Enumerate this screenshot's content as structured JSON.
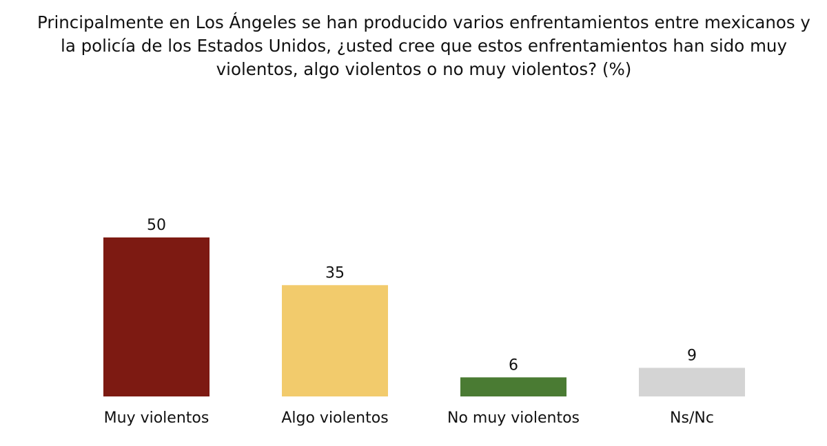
{
  "chart_data": {
    "type": "bar",
    "title": "Principalmente en Los Ángeles se han producido varios enfrentamientos entre mexicanos y la policía de los Estados Unidos, ¿usted cree que estos enfrentamientos han sido muy violentos, algo violentos o no muy violentos? (%)",
    "categories": [
      "Muy violentos",
      "Algo violentos",
      "No muy violentos",
      "Ns/Nc"
    ],
    "values": [
      50,
      35,
      6,
      9
    ],
    "colors": [
      "#7d1a12",
      "#f2cb6c",
      "#4a7b33",
      "#d4d4d4"
    ],
    "xlabel": "",
    "ylabel": "",
    "ylim": [
      0,
      50
    ],
    "grid": false,
    "legend": "none"
  }
}
